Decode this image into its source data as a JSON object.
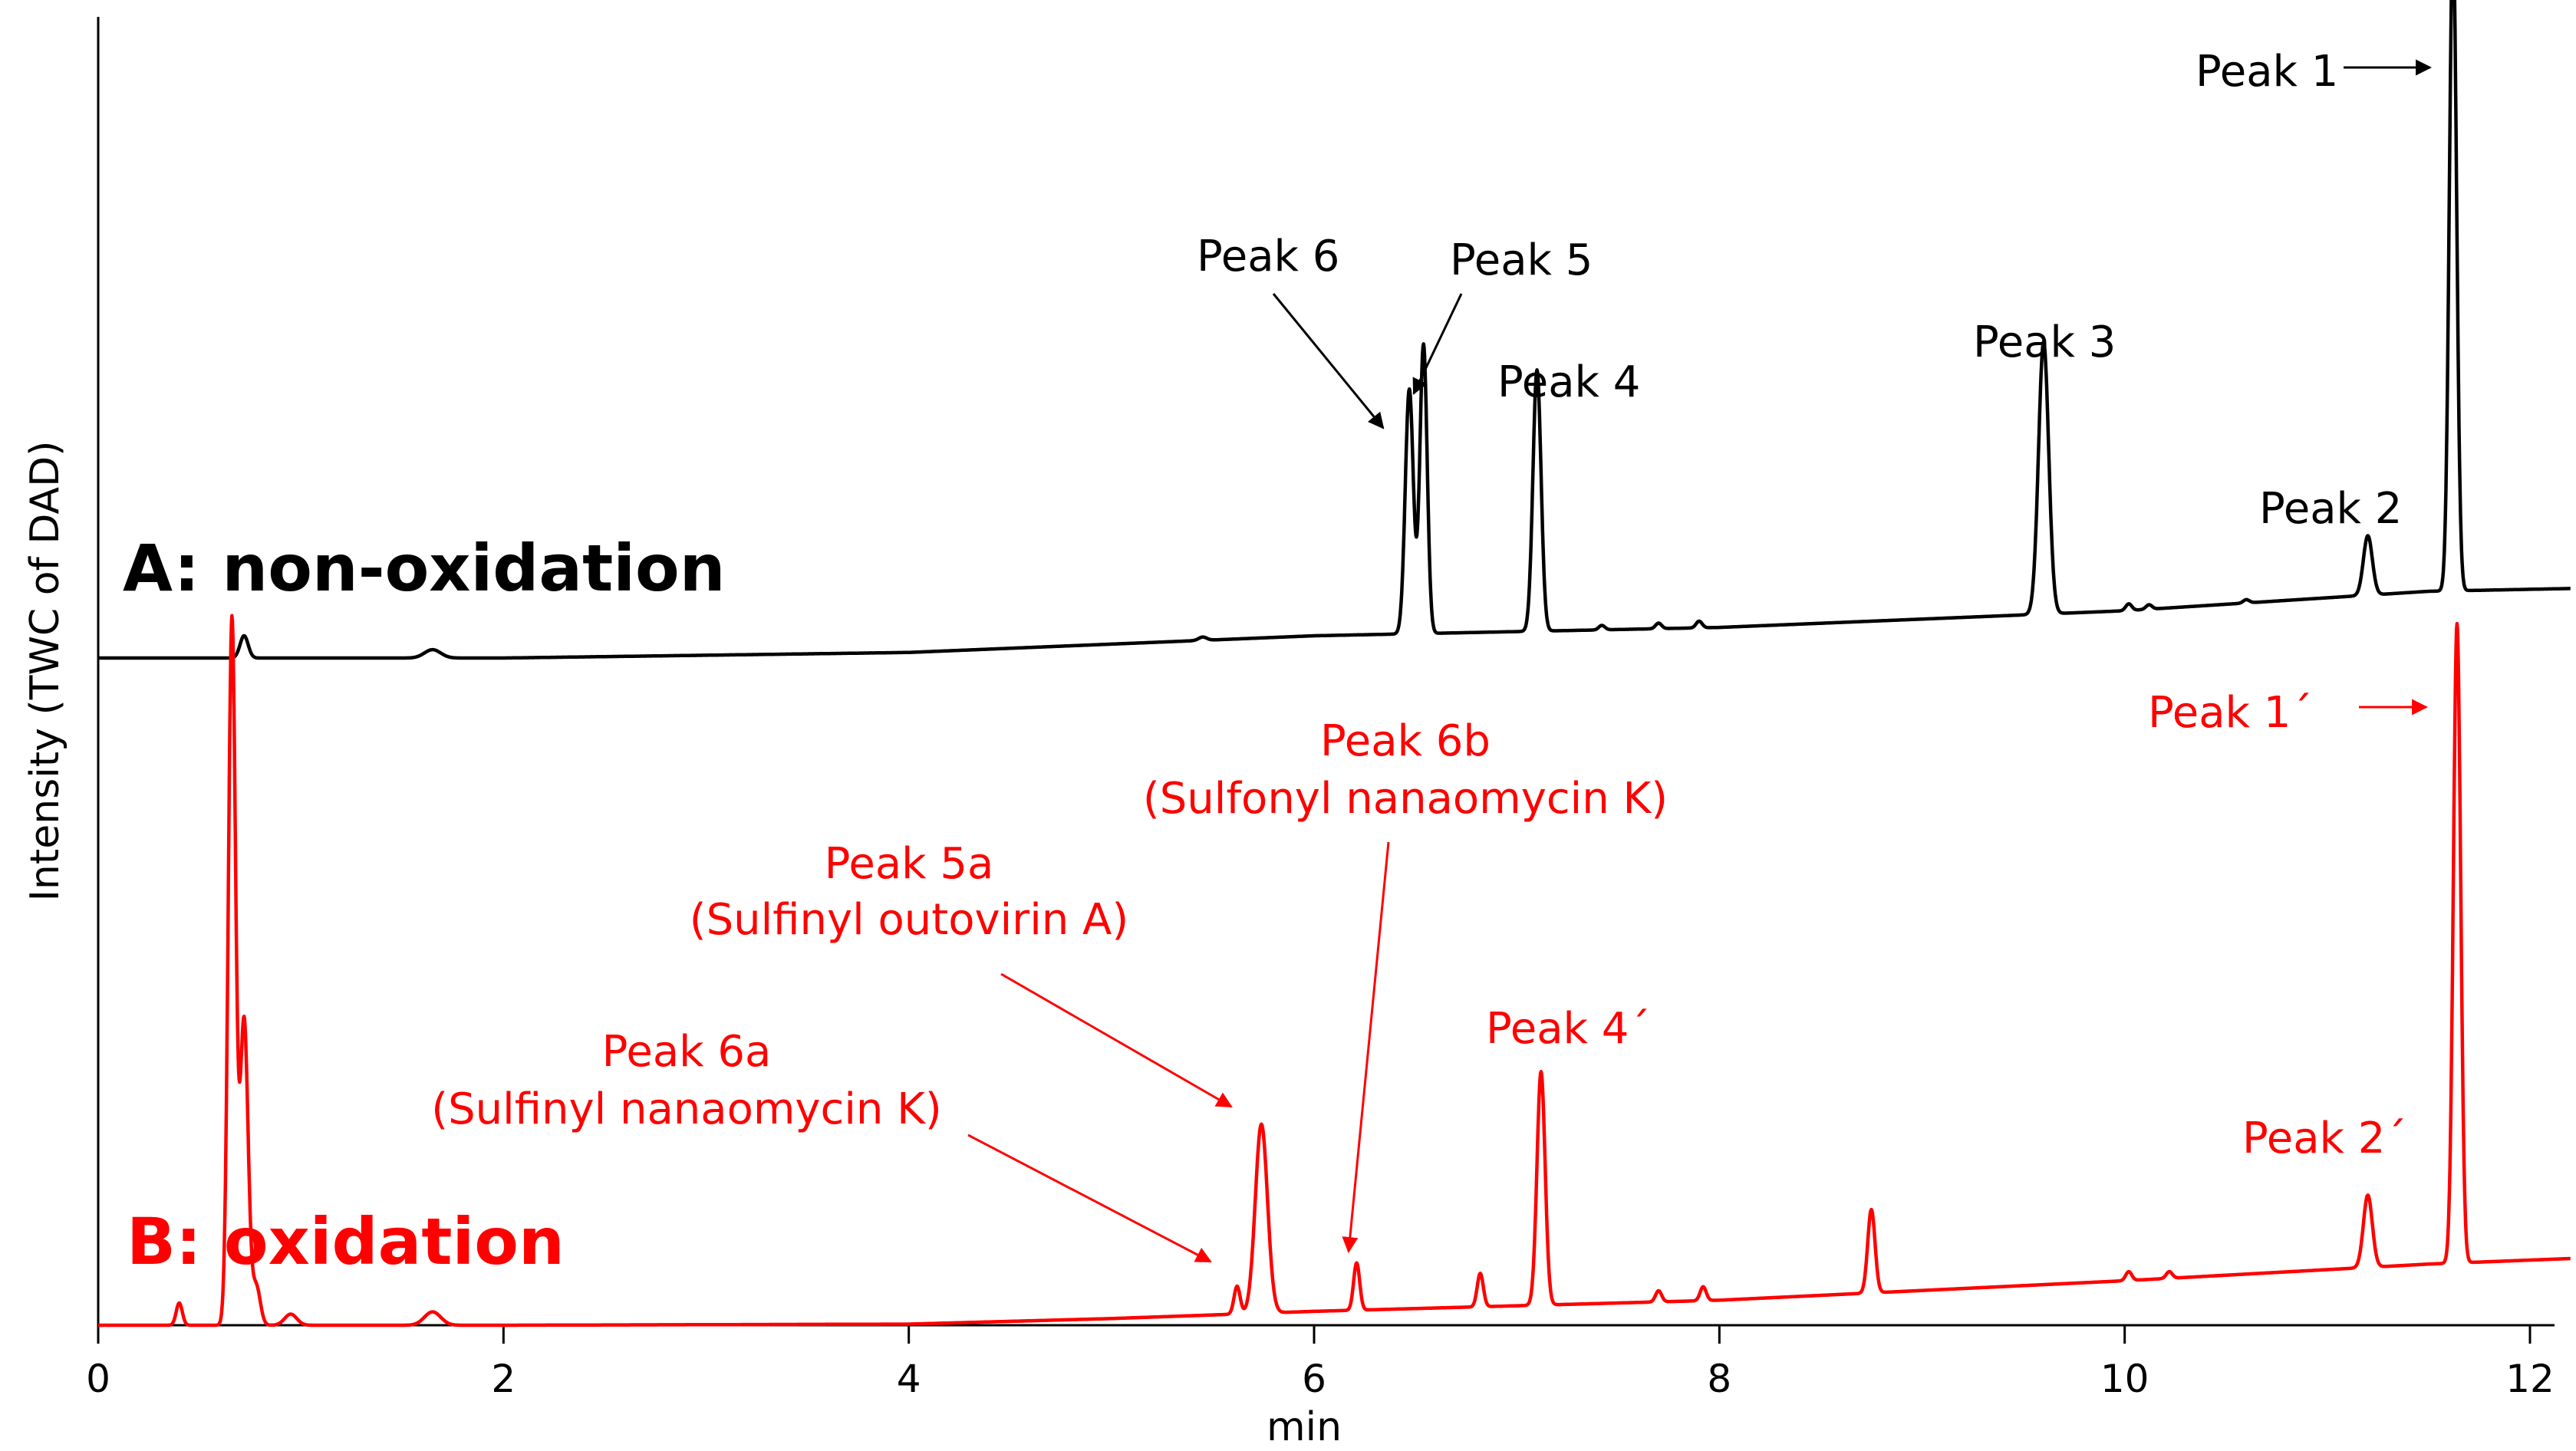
{
  "chart_data": {
    "type": "line",
    "title": "",
    "xlabel": "min",
    "ylabel": "Intensity (TWC of DAD)",
    "xlim": [
      0,
      12.2
    ],
    "xticks": [
      "0",
      "2",
      "4",
      "6",
      "8",
      "10",
      "12"
    ],
    "grid": false,
    "colors": {
      "A": "#000000",
      "B": "#ff0000"
    },
    "series": [
      {
        "id": "A",
        "name": "A: non-oxidation",
        "color": "#000000",
        "baseline": [
          [
            0,
            0.0
          ],
          [
            2,
            0.0
          ],
          [
            4,
            0.01
          ],
          [
            6,
            0.04
          ],
          [
            8,
            0.055
          ],
          [
            10,
            0.085
          ],
          [
            11.5,
            0.12
          ],
          [
            12.2,
            0.125
          ]
        ],
        "peaks": [
          {
            "t": 0.72,
            "h": 0.04,
            "w": 0.02
          },
          {
            "t": 1.65,
            "h": 0.015,
            "w": 0.04
          },
          {
            "t": 5.45,
            "h": 0.006,
            "w": 0.02
          },
          {
            "t": 6.47,
            "h": 0.44,
            "w": 0.02
          },
          {
            "t": 6.54,
            "h": 0.52,
            "w": 0.018
          },
          {
            "t": 7.1,
            "h": 0.47,
            "w": 0.02
          },
          {
            "t": 7.42,
            "h": 0.008,
            "w": 0.015
          },
          {
            "t": 7.7,
            "h": 0.01,
            "w": 0.015
          },
          {
            "t": 7.9,
            "h": 0.012,
            "w": 0.015
          },
          {
            "t": 9.6,
            "h": 0.49,
            "w": 0.025
          },
          {
            "t": 10.02,
            "h": 0.012,
            "w": 0.015
          },
          {
            "t": 10.12,
            "h": 0.008,
            "w": 0.015
          },
          {
            "t": 10.6,
            "h": 0.006,
            "w": 0.015
          },
          {
            "t": 11.2,
            "h": 0.107,
            "w": 0.022
          },
          {
            "t": 11.62,
            "h": 1.18,
            "w": 0.018
          }
        ]
      },
      {
        "id": "B",
        "name": "B: oxidation",
        "color": "#ff0000",
        "baseline": [
          [
            0,
            0.0
          ],
          [
            2,
            0.0
          ],
          [
            4,
            0.002
          ],
          [
            5,
            0.012
          ],
          [
            6,
            0.025
          ],
          [
            8,
            0.045
          ],
          [
            10,
            0.08
          ],
          [
            11.5,
            0.11
          ],
          [
            12.2,
            0.12
          ]
        ],
        "peaks": [
          {
            "t": 0.4,
            "h": 0.04,
            "w": 0.015
          },
          {
            "t": 0.66,
            "h": 1.27,
            "w": 0.018
          },
          {
            "t": 0.72,
            "h": 0.55,
            "w": 0.02
          },
          {
            "t": 0.78,
            "h": 0.07,
            "w": 0.02
          },
          {
            "t": 0.95,
            "h": 0.02,
            "w": 0.03
          },
          {
            "t": 1.65,
            "h": 0.024,
            "w": 0.04
          },
          {
            "t": 5.62,
            "h": 0.05,
            "w": 0.015
          },
          {
            "t": 5.74,
            "h": 0.34,
            "w": 0.03
          },
          {
            "t": 6.21,
            "h": 0.085,
            "w": 0.015
          },
          {
            "t": 6.82,
            "h": 0.06,
            "w": 0.015
          },
          {
            "t": 7.12,
            "h": 0.42,
            "w": 0.02
          },
          {
            "t": 7.7,
            "h": 0.02,
            "w": 0.015
          },
          {
            "t": 7.92,
            "h": 0.025,
            "w": 0.015
          },
          {
            "t": 8.75,
            "h": 0.15,
            "w": 0.018
          },
          {
            "t": 10.02,
            "h": 0.016,
            "w": 0.015
          },
          {
            "t": 10.22,
            "h": 0.012,
            "w": 0.015
          },
          {
            "t": 11.2,
            "h": 0.13,
            "w": 0.022
          },
          {
            "t": 11.64,
            "h": 1.15,
            "w": 0.018
          }
        ]
      }
    ],
    "series_labels": {
      "A": "A: non-oxidation",
      "B": "B: oxidation"
    },
    "annotations": {
      "A": [
        {
          "id": "a1",
          "label": "Peak 1",
          "t": 11.62
        },
        {
          "id": "a2",
          "label": "Peak 2",
          "t": 11.2
        },
        {
          "id": "a3",
          "label": "Peak 3",
          "t": 9.6
        },
        {
          "id": "a4",
          "label": "Peak 4",
          "t": 7.1
        },
        {
          "id": "a5",
          "label": "Peak 5",
          "t": 6.54
        },
        {
          "id": "a6",
          "label": "Peak 6",
          "t": 6.47
        }
      ],
      "B": [
        {
          "id": "b1",
          "label": "Peak 1´",
          "t": 11.64
        },
        {
          "id": "b2",
          "label": "Peak 2´",
          "t": 11.2
        },
        {
          "id": "b4",
          "label": "Peak 4´",
          "t": 7.12
        },
        {
          "id": "b5a",
          "label": "Peak 5a",
          "sub": "(Sulfinyl outovirin A)",
          "t": 5.74
        },
        {
          "id": "b6a",
          "label": "Peak 6a",
          "sub": "(Sulfinyl nanaomycin K)",
          "t": 5.62
        },
        {
          "id": "b6b",
          "label": "Peak 6b",
          "sub": "(Sulfonyl nanaomycin K)",
          "t": 6.21
        }
      ]
    }
  }
}
